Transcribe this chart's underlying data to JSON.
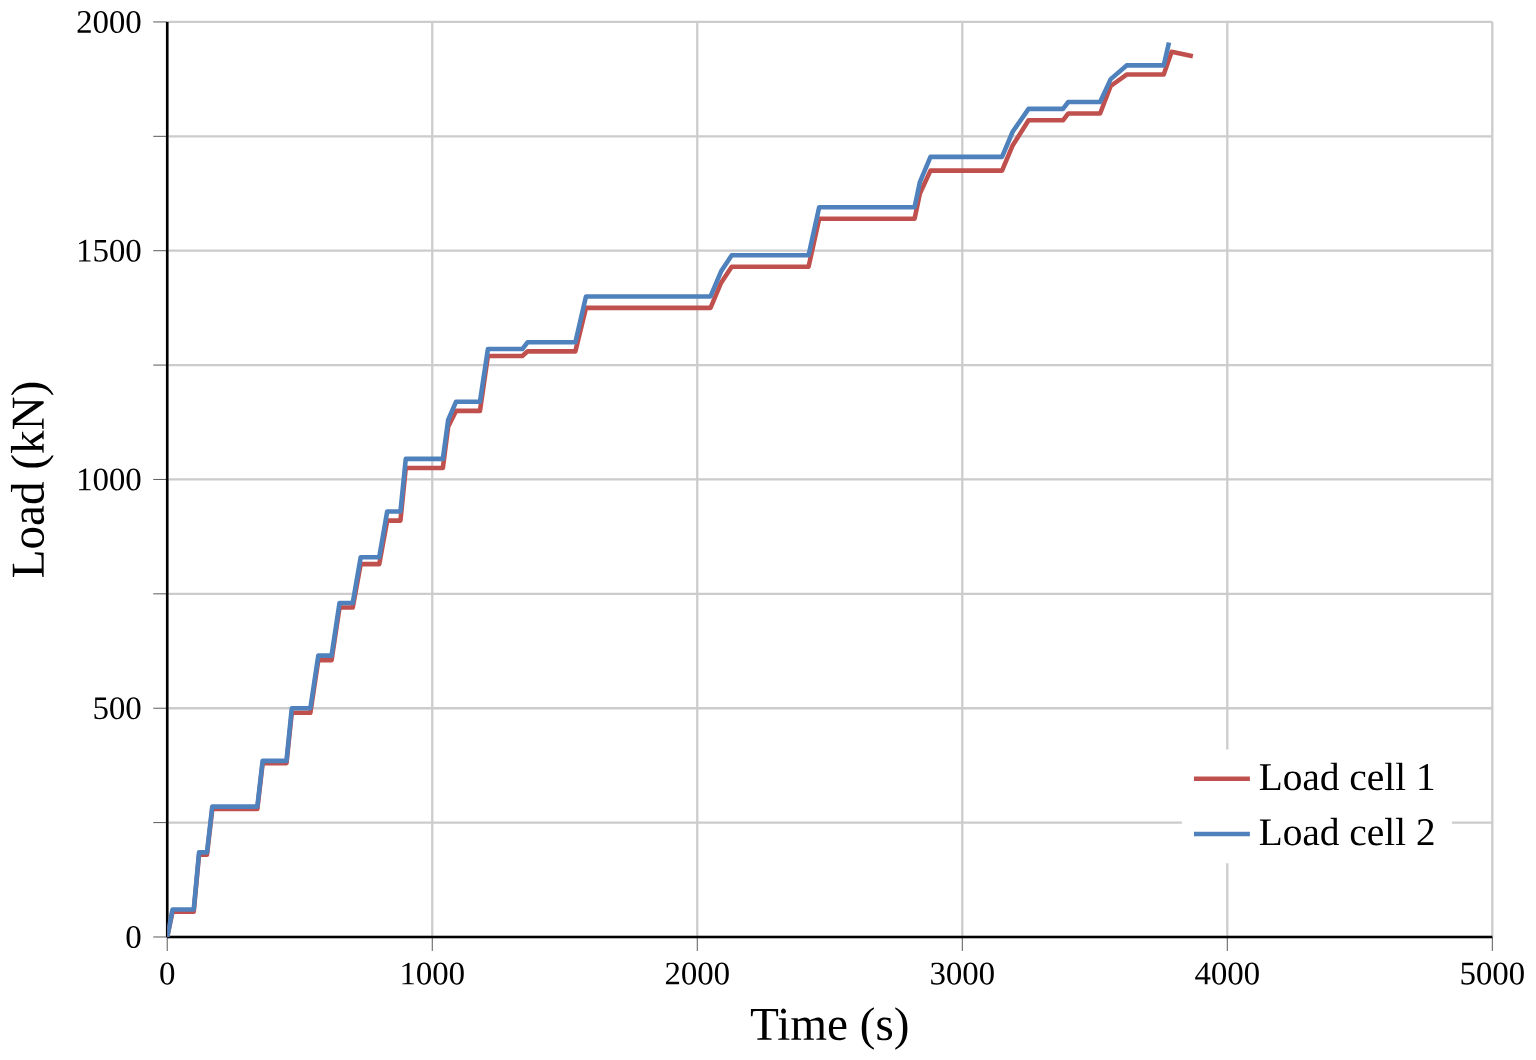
{
  "chart_data": {
    "type": "line",
    "xlabel": "Time (s)",
    "ylabel": "Load (kN)",
    "xlim": [
      0,
      5000
    ],
    "xticks": [
      0,
      1000,
      2000,
      3000,
      4000,
      5000
    ],
    "ylim": [
      0,
      2000
    ],
    "yticks": [
      0,
      {
        "value": 250,
        "label": null
      },
      500,
      {
        "value": 750,
        "label": null
      },
      1000,
      {
        "value": 1250,
        "label": null
      },
      1500,
      {
        "value": 1750,
        "label": null
      },
      2000
    ],
    "grid": true,
    "legend": "bottom right",
    "marker": "none",
    "line_style": "solid",
    "series": [
      {
        "name": "Load cell 1",
        "color": "#c0504d",
        "x": [
          0,
          20,
          100,
          120,
          150,
          170,
          340,
          360,
          450,
          470,
          540,
          570,
          620,
          650,
          700,
          730,
          800,
          830,
          880,
          900,
          1040,
          1060,
          1090,
          1180,
          1210,
          1340,
          1360,
          1540,
          1580,
          2050,
          2090,
          2130,
          2420,
          2460,
          2820,
          2840,
          2880,
          3150,
          3190,
          3250,
          3380,
          3400,
          3520,
          3560,
          3620,
          3760,
          3790,
          3870
        ],
        "values": [
          0,
          55,
          55,
          180,
          180,
          280,
          280,
          380,
          380,
          490,
          490,
          605,
          605,
          720,
          720,
          815,
          815,
          910,
          910,
          1025,
          1025,
          1115,
          1150,
          1150,
          1270,
          1270,
          1280,
          1280,
          1375,
          1375,
          1430,
          1465,
          1465,
          1570,
          1570,
          1625,
          1675,
          1675,
          1730,
          1785,
          1785,
          1800,
          1800,
          1860,
          1885,
          1885,
          1935,
          1925
        ]
      },
      {
        "name": "Load cell 2",
        "color": "#4f81bd",
        "x": [
          0,
          20,
          100,
          120,
          150,
          170,
          340,
          360,
          450,
          470,
          540,
          570,
          620,
          650,
          700,
          730,
          800,
          830,
          880,
          900,
          1040,
          1060,
          1090,
          1180,
          1210,
          1340,
          1360,
          1540,
          1580,
          2050,
          2090,
          2130,
          2420,
          2460,
          2820,
          2840,
          2880,
          3150,
          3190,
          3250,
          3380,
          3400,
          3520,
          3560,
          3620,
          3760,
          3780
        ],
        "values": [
          0,
          60,
          60,
          185,
          185,
          285,
          285,
          385,
          385,
          500,
          500,
          615,
          615,
          730,
          730,
          830,
          830,
          930,
          930,
          1045,
          1045,
          1130,
          1170,
          1170,
          1285,
          1285,
          1300,
          1300,
          1400,
          1400,
          1455,
          1490,
          1490,
          1595,
          1595,
          1650,
          1705,
          1705,
          1760,
          1810,
          1810,
          1825,
          1825,
          1875,
          1905,
          1905,
          1955
        ]
      }
    ]
  }
}
